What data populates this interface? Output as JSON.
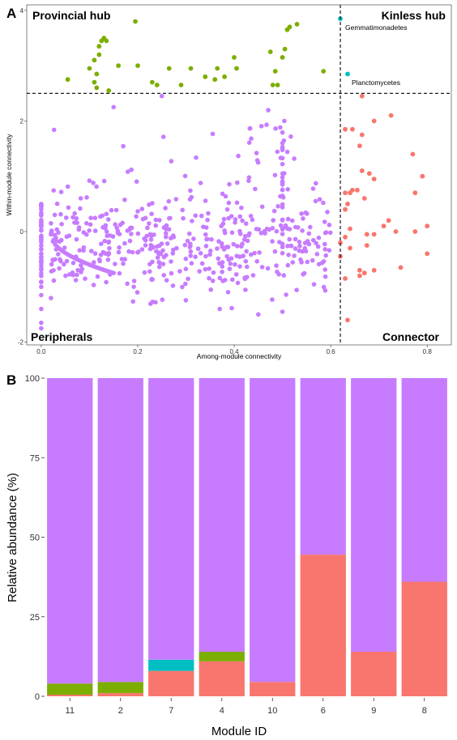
{
  "chart_data": [
    {
      "panel": "A",
      "type": "scatter",
      "xlabel": "Among-module connectivity",
      "ylabel": "Within-module connectivity",
      "xlim": [
        -0.03,
        0.85
      ],
      "ylim": [
        -2.05,
        4.1
      ],
      "x_ticks": [
        "0.0",
        "0.2",
        "0.4",
        "0.6",
        "0.8"
      ],
      "x_tick_values": [
        0,
        0.2,
        0.4,
        0.6,
        0.8
      ],
      "y_ticks": [
        "-2",
        "0",
        "2",
        "4"
      ],
      "y_tick_values": [
        -2,
        0,
        2,
        4
      ],
      "thresholds": {
        "x": 0.62,
        "y": 2.5
      },
      "quadrant_labels": {
        "top_left": "Provincial hub",
        "top_right": "Kinless hub",
        "bottom_left": "Peripherals",
        "bottom_right": "Connector"
      },
      "colors": {
        "peripherals": "#C77CFF",
        "provincial_hub": "#7CAE00",
        "kinless_hub": "#00BFC4",
        "connector": "#F8766D"
      },
      "annotations": [
        {
          "text": "Gemmatimonadetes",
          "x": 0.62,
          "y": 3.85
        },
        {
          "text": "Planctomycetes",
          "x": 0.635,
          "y": 2.85
        }
      ],
      "series": [
        {
          "name": "Provincial hub",
          "color": "#7CAE00",
          "points": [
            [
              0.055,
              2.75
            ],
            [
              0.1,
              2.95
            ],
            [
              0.11,
              3.1
            ],
            [
              0.115,
              2.85
            ],
            [
              0.12,
              3.35
            ],
            [
              0.125,
              3.45
            ],
            [
              0.13,
              3.5
            ],
            [
              0.135,
              3.45
            ],
            [
              0.12,
              3.2
            ],
            [
              0.115,
              2.6
            ],
            [
              0.11,
              2.7
            ],
            [
              0.14,
              2.55
            ],
            [
              0.16,
              3
            ],
            [
              0.195,
              3.8
            ],
            [
              0.2,
              3
            ],
            [
              0.23,
              2.7
            ],
            [
              0.24,
              2.65
            ],
            [
              0.265,
              2.95
            ],
            [
              0.29,
              2.65
            ],
            [
              0.31,
              2.95
            ],
            [
              0.34,
              2.8
            ],
            [
              0.36,
              2.75
            ],
            [
              0.365,
              2.95
            ],
            [
              0.38,
              2.8
            ],
            [
              0.4,
              3.15
            ],
            [
              0.405,
              2.95
            ],
            [
              0.475,
              3.25
            ],
            [
              0.48,
              2.65
            ],
            [
              0.485,
              2.9
            ],
            [
              0.49,
              2.65
            ],
            [
              0.5,
              3.15
            ],
            [
              0.505,
              3.3
            ],
            [
              0.51,
              3.65
            ],
            [
              0.515,
              3.7
            ],
            [
              0.53,
              3.75
            ],
            [
              0.585,
              2.9
            ]
          ]
        },
        {
          "name": "Kinless hub",
          "color": "#00BFC4",
          "points": [
            [
              0.62,
              3.85
            ],
            [
              0.635,
              2.85
            ]
          ]
        },
        {
          "name": "Connector",
          "color": "#F8766D",
          "points": [
            [
              0.665,
              2.45
            ],
            [
              0.63,
              1.85
            ],
            [
              0.645,
              1.85
            ],
            [
              0.665,
              1.75
            ],
            [
              0.69,
              2
            ],
            [
              0.725,
              2.1
            ],
            [
              0.66,
              1.55
            ],
            [
              0.77,
              1.4
            ],
            [
              0.68,
              1.05
            ],
            [
              0.665,
              1.1
            ],
            [
              0.79,
              1
            ],
            [
              0.69,
              0.95
            ],
            [
              0.645,
              0.75
            ],
            [
              0.655,
              0.75
            ],
            [
              0.63,
              0.7
            ],
            [
              0.64,
              0.7
            ],
            [
              0.775,
              0.7
            ],
            [
              0.635,
              0.5
            ],
            [
              0.67,
              0.6
            ],
            [
              0.63,
              0.4
            ],
            [
              0.72,
              0.2
            ],
            [
              0.71,
              0.1
            ],
            [
              0.8,
              0.1
            ],
            [
              0.735,
              0
            ],
            [
              0.775,
              0
            ],
            [
              0.675,
              -0.05
            ],
            [
              0.69,
              -0.05
            ],
            [
              0.64,
              0.05
            ],
            [
              0.63,
              -0.1
            ],
            [
              0.62,
              -0.2
            ],
            [
              0.675,
              -0.25
            ],
            [
              0.64,
              -0.3
            ],
            [
              0.62,
              -0.45
            ],
            [
              0.66,
              -0.7
            ],
            [
              0.67,
              -0.75
            ],
            [
              0.69,
              -0.7
            ],
            [
              0.66,
              -0.8
            ],
            [
              0.8,
              -0.4
            ],
            [
              0.745,
              -0.65
            ],
            [
              0.63,
              -0.85
            ],
            [
              0.635,
              -1.6
            ]
          ]
        }
      ]
    },
    {
      "panel": "B",
      "type": "bar",
      "stacked": true,
      "xlabel": "Module ID",
      "ylabel": "Relative abundance (%)",
      "ylim": [
        0,
        100
      ],
      "y_ticks": [
        "0",
        "25",
        "50",
        "75",
        "100"
      ],
      "y_tick_values": [
        0,
        25,
        50,
        75,
        100
      ],
      "categories": [
        "11",
        "2",
        "7",
        "4",
        "10",
        "6",
        "9",
        "8"
      ],
      "series": [
        {
          "color": "#F8766D",
          "values": [
            0.5,
            1,
            8,
            11,
            4.5,
            44.5,
            14,
            36
          ]
        },
        {
          "color": "#00BFC4",
          "values": [
            0,
            0,
            3.5,
            0,
            0,
            0,
            0,
            0
          ]
        },
        {
          "color": "#7CAE00",
          "values": [
            3.5,
            3.5,
            0,
            3,
            0,
            0,
            0,
            0
          ]
        },
        {
          "color": "#C77CFF",
          "values": [
            96,
            95.5,
            88.5,
            86,
            95.5,
            55.5,
            86,
            64
          ]
        }
      ]
    }
  ]
}
